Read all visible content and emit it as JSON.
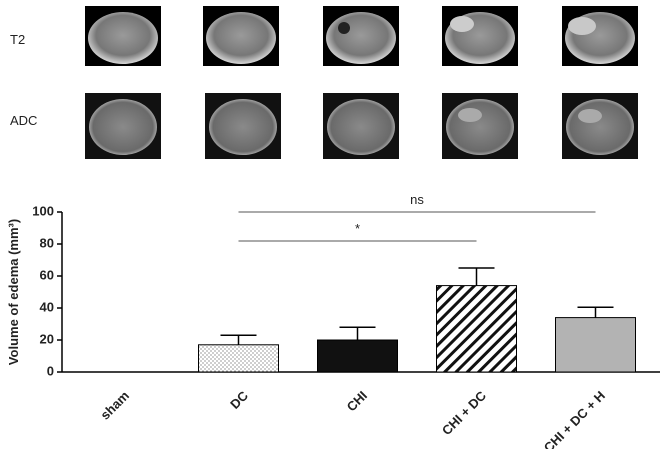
{
  "panel_labels": [
    "T2",
    "ADC"
  ],
  "chart_data": {
    "type": "bar",
    "y_label": "Volume of edema (mm³)",
    "categories": [
      "sham",
      "DC",
      "CHI",
      "CHI + DC",
      "CHI + DC + H"
    ],
    "values": [
      0,
      17,
      20,
      54,
      34
    ],
    "errors": [
      null,
      6,
      8,
      11,
      6.5
    ],
    "fills": [
      "#ffffff",
      "dots",
      "#111111",
      "hatch",
      "#b3b3b3"
    ],
    "ylim": [
      0,
      100
    ],
    "yticks": [
      0,
      20,
      40,
      60,
      80,
      100
    ],
    "comparisons": [
      {
        "label": "*",
        "categories": [
          "DC",
          "CHI + DC"
        ]
      },
      {
        "label": "ns",
        "categories": [
          "DC",
          "CHI + DC + H"
        ]
      }
    ]
  }
}
